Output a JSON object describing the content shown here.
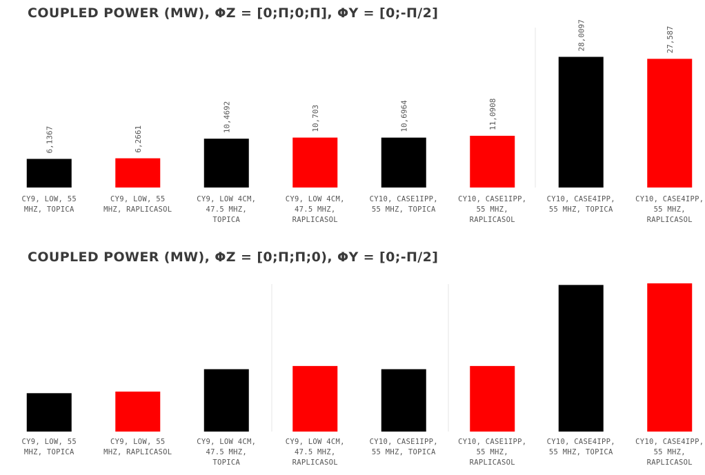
{
  "chart_data": [
    {
      "type": "bar",
      "title": "COUPLED POWER (MW), ΦZ = [0;Π;0;Π], ΦY = [0;-Π/2]",
      "categories": [
        [
          "CY9, LOW, 55",
          "MHZ, TOPICA"
        ],
        [
          "CY9, LOW, 55",
          "MHZ, RAPLICASOL"
        ],
        [
          "CY9, LOW 4CM,",
          "47.5 MHZ,",
          "TOPICA"
        ],
        [
          "CY9, LOW 4CM,",
          "47.5 MHZ,",
          "RAPLICASOL"
        ],
        [
          "CY10, CASE1IPP,",
          "55 MHZ, TOPICA"
        ],
        [
          "CY10, CASE1IPP,",
          "55 MHZ,",
          "RAPLICASOL"
        ],
        [
          "CY10, CASE4IPP,",
          "55 MHZ, TOPICA"
        ],
        [
          "CY10, CASE4IPP,",
          "55 MHZ,",
          "RAPLICASOL"
        ]
      ],
      "values": [
        6.1367,
        6.2661,
        10.4692,
        10.703,
        10.6964,
        11.0908,
        28.0097,
        27.587
      ],
      "value_labels": [
        "6,1367",
        "6,2661",
        "10,4692",
        "10,703",
        "10,6964",
        "11,0908",
        "28,0097",
        "27,587"
      ],
      "colors": [
        "#000000",
        "#ff0000",
        "#000000",
        "#ff0000",
        "#000000",
        "#ff0000",
        "#000000",
        "#ff0000"
      ],
      "ylim": [
        0,
        30
      ],
      "grid": false
    },
    {
      "type": "bar",
      "title": "COUPLED POWER (MW), ΦZ = [0;Π;Π;0), ΦY = [0;-Π/2]",
      "categories": [
        [
          "CY9, LOW, 55",
          "MHZ, TOPICA"
        ],
        [
          "CY9, LOW, 55",
          "MHZ, RAPLICASOL"
        ],
        [
          "CY9, LOW 4CM,",
          "47.5 MHZ,",
          "TOPICA"
        ],
        [
          "CY9, LOW 4CM,",
          "47.5 MHZ,",
          "RAPLICASOL"
        ],
        [
          "CY10, CASE1IPP,",
          "55 MHZ, TOPICA"
        ],
        [
          "CY10, CASE1IPP,",
          "55 MHZ,",
          "RAPLICASOL"
        ],
        [
          "CY10, CASE4IPP,",
          "55 MHZ, TOPICA"
        ],
        [
          "CY10, CASE4IPP,",
          "55 MHZ,",
          "RAPLICASOL"
        ]
      ],
      "values": [
        7.2,
        7.5,
        11.7,
        12.3,
        11.7,
        12.3,
        27.5,
        27.8
      ],
      "colors": [
        "#000000",
        "#ff0000",
        "#000000",
        "#ff0000",
        "#000000",
        "#ff0000",
        "#000000",
        "#ff0000"
      ],
      "ylim": [
        0,
        30
      ],
      "grid": false
    }
  ]
}
